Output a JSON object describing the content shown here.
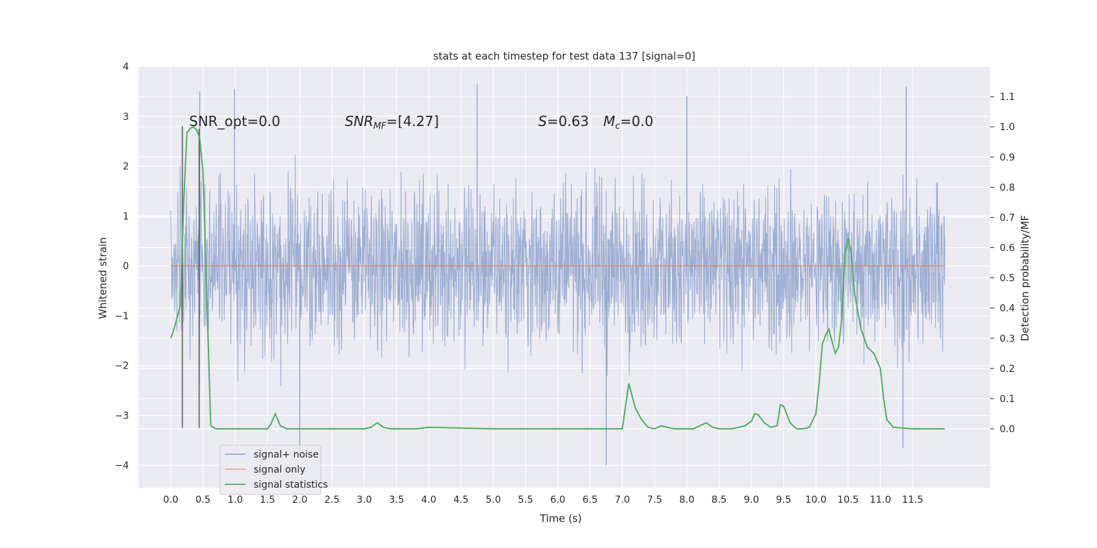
{
  "chart_data": {
    "type": "line",
    "title": "stats at each timestep for test data 137 [signal=0]",
    "xlabel": "Time (s)",
    "ylabel": "Whitened strain",
    "y2label": "Detection probability/MF",
    "xlim": [
      -0.5,
      12.7
    ],
    "ylim": [
      -4.45,
      4.0
    ],
    "y2lim": [
      -0.195,
      1.2
    ],
    "x_ticks": [
      "0.0",
      "0.5",
      "1.0",
      "1.5",
      "2.0",
      "2.5",
      "3.0",
      "3.5",
      "4.0",
      "4.5",
      "5.0",
      "5.5",
      "6.0",
      "6.5",
      "7.0",
      "7.5",
      "8.0",
      "8.5",
      "9.0",
      "9.5",
      "10.0",
      "10.5",
      "11.0",
      "11.5"
    ],
    "y_ticks": [
      "4",
      "3",
      "2",
      "1",
      "0",
      "−1",
      "−2",
      "−3",
      "−4"
    ],
    "y2_ticks": [
      "1.1",
      "1.0",
      "0.9",
      "0.8",
      "0.7",
      "0.6",
      "0.5",
      "0.4",
      "0.3",
      "0.2",
      "0.1",
      "0.0"
    ],
    "grid": true,
    "legend_position": "lower-left",
    "annotations": {
      "snr_opt": "SNR_opt=0.0",
      "snr_mf_main": "SNR",
      "snr_mf_sub": "MF",
      "snr_mf_rest": "=[4.27]",
      "s_label": "S",
      "s_rest": "=0.63",
      "mc_label": "M",
      "mc_sub": "c",
      "mc_rest": "=0.0"
    },
    "series": [
      {
        "name": "signal+ noise",
        "color": "#8fa3cc",
        "description_range": [
          -4.0,
          3.6
        ],
        "x_range": [
          0.0,
          12.0
        ],
        "notable_peaks": [
          [
            0.45,
            3.5
          ],
          [
            0.99,
            3.55
          ],
          [
            4.75,
            3.65
          ],
          [
            8.0,
            3.4
          ],
          [
            11.4,
            3.6
          ],
          [
            6.75,
            -4.0
          ],
          [
            2.0,
            -3.8
          ],
          [
            11.35,
            -3.65
          ]
        ]
      },
      {
        "name": "signal only",
        "color": "#dd8452",
        "x": [
          0.0,
          12.0
        ],
        "y": [
          0.0,
          0.0
        ]
      },
      {
        "name": "signal statistics",
        "color": "#4eae5b",
        "axis": "right",
        "x": [
          0.0,
          0.05,
          0.1,
          0.15,
          0.2,
          0.25,
          0.3,
          0.35,
          0.4,
          0.45,
          0.5,
          0.55,
          0.6,
          0.62,
          0.7,
          0.8,
          1.0,
          1.2,
          1.4,
          1.5,
          1.55,
          1.62,
          1.7,
          1.8,
          2.0,
          2.5,
          2.8,
          3.0,
          3.1,
          3.2,
          3.3,
          3.4,
          3.6,
          3.8,
          4.0,
          5.0,
          6.0,
          6.5,
          6.8,
          6.9,
          7.0,
          7.1,
          7.2,
          7.3,
          7.4,
          7.5,
          7.6,
          7.7,
          7.8,
          8.0,
          8.1,
          8.2,
          8.3,
          8.4,
          8.5,
          8.7,
          8.8,
          8.9,
          9.0,
          9.05,
          9.1,
          9.2,
          9.3,
          9.4,
          9.45,
          9.5,
          9.6,
          9.7,
          9.8,
          9.9,
          10.0,
          10.05,
          10.1,
          10.15,
          10.2,
          10.25,
          10.3,
          10.35,
          10.4,
          10.45,
          10.5,
          10.55,
          10.6,
          10.7,
          10.8,
          10.9,
          11.0,
          11.05,
          11.1,
          11.2,
          11.5,
          11.8,
          11.9,
          12.0
        ],
        "y": [
          0.3,
          0.33,
          0.37,
          0.41,
          0.75,
          0.98,
          0.995,
          1.0,
          0.99,
          0.96,
          0.85,
          0.5,
          0.15,
          0.01,
          0.0,
          0.0,
          0.0,
          0.0,
          0.0,
          0.0,
          0.015,
          0.05,
          0.01,
          0.0,
          0.0,
          0.0,
          0.0,
          0.0,
          0.005,
          0.02,
          0.005,
          0.0,
          0.0,
          0.0,
          0.005,
          0.0,
          0.0,
          0.0,
          0.0,
          0.0,
          0.0,
          0.15,
          0.07,
          0.03,
          0.005,
          0.0,
          0.01,
          0.005,
          0.0,
          0.0,
          0.0,
          0.01,
          0.02,
          0.005,
          0.0,
          0.0,
          0.005,
          0.01,
          0.025,
          0.05,
          0.048,
          0.02,
          0.005,
          0.01,
          0.08,
          0.075,
          0.02,
          0.0,
          0.0,
          0.005,
          0.05,
          0.15,
          0.28,
          0.31,
          0.33,
          0.29,
          0.25,
          0.27,
          0.36,
          0.58,
          0.63,
          0.58,
          0.45,
          0.33,
          0.27,
          0.25,
          0.2,
          0.1,
          0.03,
          0.005,
          0.0,
          0.0,
          0.0,
          0.0
        ]
      }
    ],
    "vertical_markers": {
      "color": "#555555",
      "lines": [
        {
          "x": 0.18,
          "y_top": 2.8,
          "y_bottom": -3.25
        },
        {
          "x": 0.44,
          "y_top": 2.75,
          "y_bottom": -3.25
        }
      ]
    }
  }
}
